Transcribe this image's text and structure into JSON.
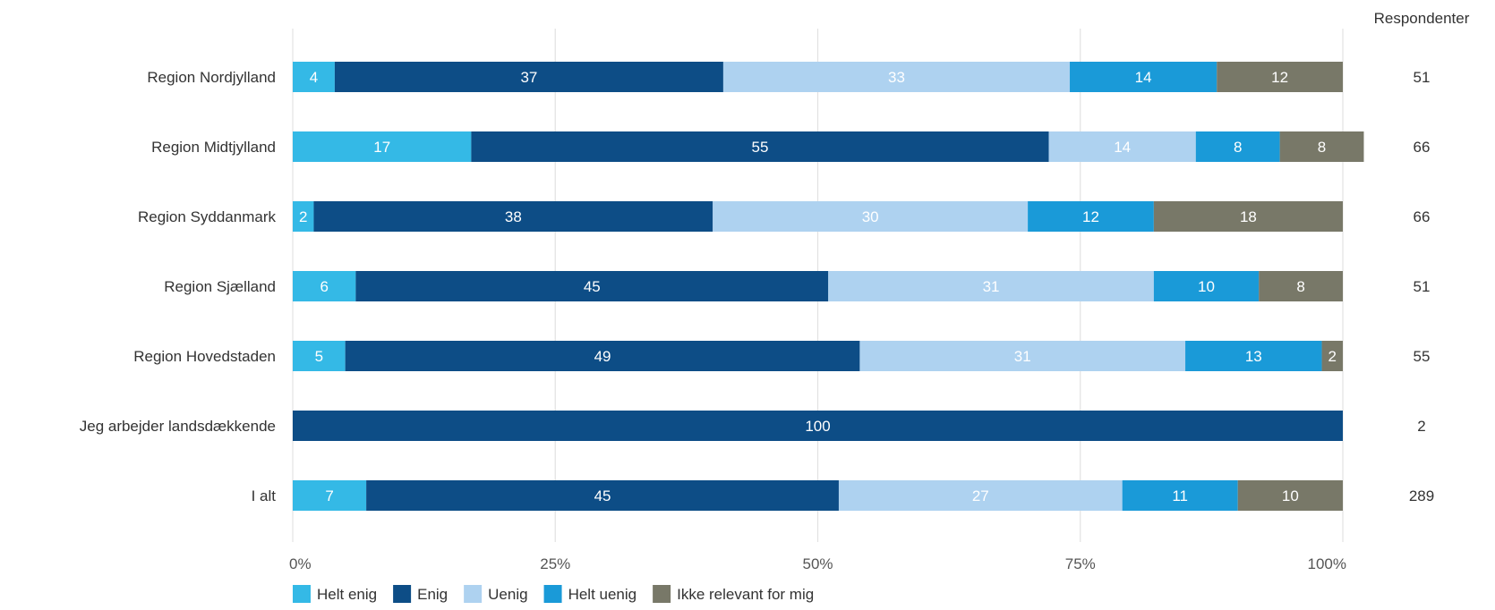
{
  "chart_data": {
    "type": "bar",
    "orientation": "horizontal",
    "stacked": true,
    "percent_scale": true,
    "categories": [
      "Region Nordjylland",
      "Region Midtjylland",
      "Region Syddanmark",
      "Region Sjælland",
      "Region Hovedstaden",
      "Jeg arbejder landsdækkende",
      "I alt"
    ],
    "series": [
      {
        "name": "Helt enig",
        "color": "#34b9e6",
        "values": [
          4,
          17,
          2,
          6,
          5,
          0,
          7
        ]
      },
      {
        "name": "Enig",
        "color": "#0d4d86",
        "values": [
          37,
          55,
          38,
          45,
          49,
          100,
          45
        ]
      },
      {
        "name": "Uenig",
        "color": "#aed2f0",
        "values": [
          33,
          14,
          30,
          31,
          31,
          0,
          27
        ]
      },
      {
        "name": "Helt uenig",
        "color": "#1a9ad8",
        "values": [
          14,
          8,
          12,
          10,
          13,
          0,
          11
        ]
      },
      {
        "name": "Ikke relevant for mig",
        "color": "#787868",
        "values": [
          12,
          8,
          18,
          8,
          2,
          0,
          10
        ]
      }
    ],
    "xlim": [
      0,
      100
    ],
    "x_ticks": [
      "0%",
      "25%",
      "50%",
      "75%",
      "100%"
    ],
    "grid": true,
    "legend_position": "bottom-left",
    "respondents_header": "Respondenter",
    "respondents": [
      "51",
      "66",
      "66",
      "51",
      "55",
      "2",
      "289"
    ]
  }
}
